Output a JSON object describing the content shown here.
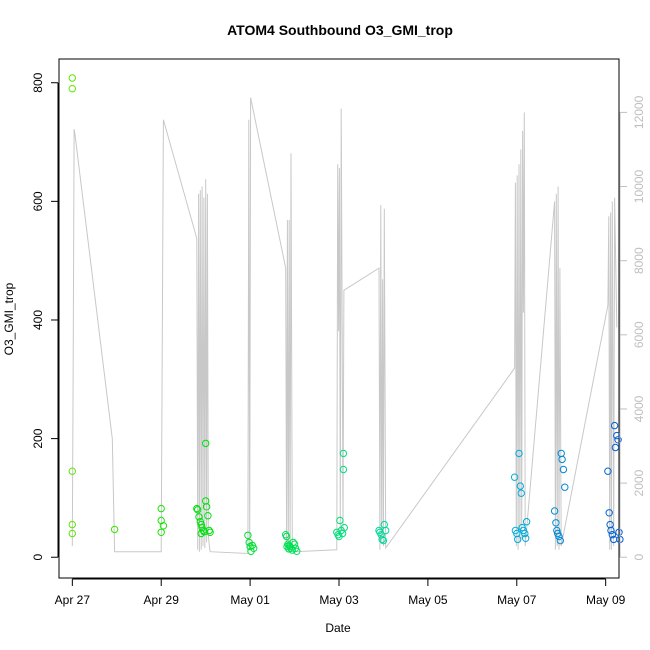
{
  "chart_data": {
    "type": "scatter",
    "title": "ATOM4 Southbound O3_GMI_trop",
    "xlabel": "Date",
    "ylabel": "O3_GMI_trop",
    "x_axis": {
      "range_days": [
        -0.3,
        12.3
      ],
      "ticks": [
        {
          "day": 0,
          "label": "Apr 27"
        },
        {
          "day": 2,
          "label": "Apr 29"
        },
        {
          "day": 4,
          "label": "May 01"
        },
        {
          "day": 6,
          "label": "May 03"
        },
        {
          "day": 8,
          "label": "May 05"
        },
        {
          "day": 10,
          "label": "May 07"
        },
        {
          "day": 12,
          "label": "May 09"
        }
      ]
    },
    "y_axis_left": {
      "range": [
        -35,
        840
      ],
      "ticks": [
        0,
        200,
        400,
        600,
        800
      ]
    },
    "y_axis_right": {
      "range": [
        -560,
        13440
      ],
      "ticks": [
        0,
        2000,
        4000,
        6000,
        8000,
        10000,
        12000
      ],
      "color": "#bfbfbf"
    },
    "series": [
      {
        "kind": "points",
        "color_scale": "rainbow-by-time",
        "points": [
          [
            0.0,
            808
          ],
          [
            0.0,
            790
          ],
          [
            0.0,
            145
          ],
          [
            0.0,
            55
          ],
          [
            0.0,
            40
          ],
          [
            0.95,
            47
          ],
          [
            2.0,
            82
          ],
          [
            2.0,
            62
          ],
          [
            2.0,
            42
          ],
          [
            2.05,
            53
          ],
          [
            2.8,
            82
          ],
          [
            2.82,
            80
          ],
          [
            2.85,
            68
          ],
          [
            2.88,
            60
          ],
          [
            2.9,
            55
          ],
          [
            2.92,
            50
          ],
          [
            2.95,
            45
          ],
          [
            2.97,
            43
          ],
          [
            3.0,
            95
          ],
          [
            3.02,
            85
          ],
          [
            3.05,
            70
          ],
          [
            3.08,
            45
          ],
          [
            3.1,
            42
          ],
          [
            3.0,
            192
          ],
          [
            2.9,
            40
          ],
          [
            3.95,
            37
          ],
          [
            3.98,
            25
          ],
          [
            4.0,
            18
          ],
          [
            4.02,
            10
          ],
          [
            4.05,
            20
          ],
          [
            4.08,
            15
          ],
          [
            4.8,
            38
          ],
          [
            4.82,
            35
          ],
          [
            4.85,
            22
          ],
          [
            4.88,
            20
          ],
          [
            4.9,
            18
          ],
          [
            4.92,
            15
          ],
          [
            4.95,
            12
          ],
          [
            4.97,
            25
          ],
          [
            5.0,
            22
          ],
          [
            5.02,
            15
          ],
          [
            5.05,
            10
          ],
          [
            4.83,
            18
          ],
          [
            4.87,
            14
          ],
          [
            5.95,
            42
          ],
          [
            5.98,
            38
          ],
          [
            6.0,
            35
          ],
          [
            6.02,
            62
          ],
          [
            6.05,
            45
          ],
          [
            6.08,
            40
          ],
          [
            6.1,
            175
          ],
          [
            6.1,
            148
          ],
          [
            6.12,
            50
          ],
          [
            6.9,
            45
          ],
          [
            6.92,
            42
          ],
          [
            6.95,
            38
          ],
          [
            6.97,
            30
          ],
          [
            7.0,
            28
          ],
          [
            7.02,
            55
          ],
          [
            7.05,
            45
          ],
          [
            9.95,
            135
          ],
          [
            9.97,
            45
          ],
          [
            10.0,
            40
          ],
          [
            10.02,
            30
          ],
          [
            10.05,
            175
          ],
          [
            10.08,
            120
          ],
          [
            10.1,
            108
          ],
          [
            10.12,
            50
          ],
          [
            10.15,
            45
          ],
          [
            10.18,
            40
          ],
          [
            10.2,
            32
          ],
          [
            10.22,
            60
          ],
          [
            10.85,
            78
          ],
          [
            10.88,
            58
          ],
          [
            10.9,
            45
          ],
          [
            10.92,
            40
          ],
          [
            10.95,
            35
          ],
          [
            10.98,
            28
          ],
          [
            11.0,
            175
          ],
          [
            11.02,
            165
          ],
          [
            11.05,
            148
          ],
          [
            11.08,
            118
          ],
          [
            12.05,
            145
          ],
          [
            12.08,
            75
          ],
          [
            12.1,
            55
          ],
          [
            12.12,
            45
          ],
          [
            12.15,
            38
          ],
          [
            12.18,
            30
          ],
          [
            12.2,
            222
          ],
          [
            12.22,
            185
          ],
          [
            12.25,
            205
          ],
          [
            12.28,
            198
          ],
          [
            12.3,
            42
          ],
          [
            12.32,
            30
          ]
        ]
      },
      {
        "kind": "line",
        "axis": "right",
        "color": "#c8c8c8",
        "points": [
          [
            0.0,
            300
          ],
          [
            0.02,
            5300
          ],
          [
            0.04,
            11550
          ],
          [
            0.06,
            11400
          ],
          [
            0.9,
            3200
          ],
          [
            0.95,
            150
          ],
          [
            2.0,
            150
          ],
          [
            2.05,
            11800
          ],
          [
            2.8,
            8600
          ],
          [
            2.82,
            200
          ],
          [
            2.84,
            9800
          ],
          [
            2.86,
            150
          ],
          [
            2.88,
            9900
          ],
          [
            2.9,
            200
          ],
          [
            2.92,
            10000
          ],
          [
            2.94,
            300
          ],
          [
            2.96,
            9700
          ],
          [
            2.98,
            250
          ],
          [
            3.0,
            10200
          ],
          [
            3.02,
            400
          ],
          [
            3.04,
            9800
          ],
          [
            3.06,
            600
          ],
          [
            3.08,
            350
          ],
          [
            3.1,
            150
          ],
          [
            3.95,
            100
          ],
          [
            3.97,
            11800
          ],
          [
            3.99,
            200
          ],
          [
            4.01,
            12400
          ],
          [
            4.8,
            7800
          ],
          [
            4.82,
            200
          ],
          [
            4.84,
            9100
          ],
          [
            4.86,
            150
          ],
          [
            4.88,
            9100
          ],
          [
            4.9,
            200
          ],
          [
            4.92,
            10900
          ],
          [
            4.95,
            300
          ],
          [
            5.0,
            150
          ],
          [
            5.95,
            200
          ],
          [
            5.97,
            10600
          ],
          [
            5.99,
            6100
          ],
          [
            6.01,
            10500
          ],
          [
            6.03,
            600
          ],
          [
            6.05,
            12100
          ],
          [
            6.07,
            6600
          ],
          [
            6.09,
            700
          ],
          [
            6.11,
            7200
          ],
          [
            6.9,
            7800
          ],
          [
            6.92,
            200
          ],
          [
            6.94,
            9500
          ],
          [
            6.96,
            400
          ],
          [
            6.98,
            7500
          ],
          [
            7.0,
            300
          ],
          [
            7.02,
            9400
          ],
          [
            7.05,
            250
          ],
          [
            9.95,
            5100
          ],
          [
            9.97,
            10100
          ],
          [
            9.99,
            300
          ],
          [
            10.01,
            10300
          ],
          [
            10.03,
            200
          ],
          [
            10.05,
            10600
          ],
          [
            10.07,
            400
          ],
          [
            10.09,
            11000
          ],
          [
            10.11,
            500
          ],
          [
            10.13,
            11500
          ],
          [
            10.15,
            6600
          ],
          [
            10.17,
            12000
          ],
          [
            10.19,
            300
          ],
          [
            10.85,
            9600
          ],
          [
            10.87,
            200
          ],
          [
            10.89,
            9800
          ],
          [
            10.91,
            300
          ],
          [
            10.93,
            10000
          ],
          [
            10.95,
            200
          ],
          [
            10.97,
            7800
          ],
          [
            11.0,
            300
          ],
          [
            12.05,
            6800
          ],
          [
            12.07,
            9200
          ],
          [
            12.09,
            200
          ],
          [
            12.11,
            9300
          ],
          [
            12.13,
            200
          ],
          [
            12.15,
            9600
          ],
          [
            12.18,
            300
          ],
          [
            12.2,
            9700
          ],
          [
            12.25,
            6200
          ]
        ]
      }
    ],
    "grid": false,
    "legend": "none"
  }
}
